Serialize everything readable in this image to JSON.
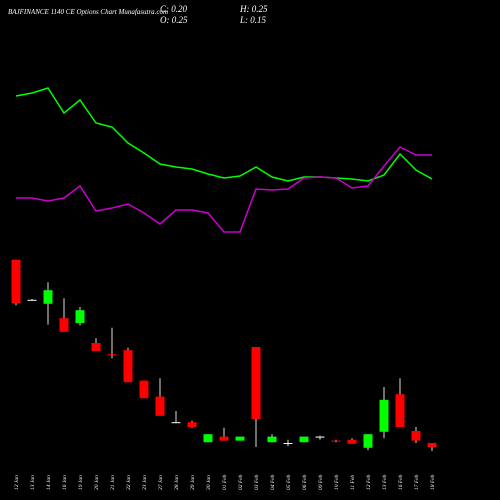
{
  "chart_data": {
    "type": "candlestick",
    "title": "BAJFINANCE 1140 CE Options Chart Munafasutra.com",
    "info": [
      "C: 0.20",
      "H: 0.25",
      "O: 0.25",
      "L: 0.15"
    ],
    "categories": [
      "12 Jan",
      "13 Jan",
      "14 Jan",
      "16 Jan",
      "19 Jan",
      "20 Jan",
      "21 Jan",
      "22 Jan",
      "23 Jan",
      "27 Jan",
      "28 Jan",
      "29 Jan",
      "30 Jan",
      "01 Feb",
      "02 Feb",
      "03 Feb",
      "04 Feb",
      "05 Feb",
      "06 Feb",
      "09 Feb",
      "10 Feb",
      "11 Feb",
      "12 Feb",
      "13 Feb",
      "16 Feb",
      "17 Feb",
      "18 Feb"
    ],
    "open": [
      2.54,
      2.04,
      1.99,
      1.81,
      1.75,
      1.5,
      1.36,
      1.41,
      1.03,
      0.83,
      0.51,
      0.51,
      0.26,
      0.33,
      0.28,
      1.45,
      0.26,
      0.25,
      0.26,
      0.33,
      0.28,
      0.29,
      0.19,
      0.39,
      0.86,
      0.4,
      0.25
    ],
    "high": [
      2.54,
      2.05,
      2.26,
      2.06,
      1.95,
      1.56,
      1.69,
      1.44,
      1.03,
      1.06,
      0.65,
      0.53,
      0.36,
      0.44,
      0.33,
      1.45,
      0.36,
      0.29,
      0.33,
      0.34,
      0.29,
      0.31,
      0.36,
      0.95,
      1.06,
      0.45,
      0.25
    ],
    "low": [
      1.97,
      2.03,
      1.73,
      1.64,
      1.72,
      1.4,
      1.31,
      1.01,
      0.81,
      0.59,
      0.5,
      0.44,
      0.26,
      0.28,
      0.28,
      0.2,
      0.26,
      0.21,
      0.26,
      0.29,
      0.26,
      0.24,
      0.16,
      0.31,
      0.45,
      0.25,
      0.15
    ],
    "close": [
      2.0,
      2.04,
      2.16,
      1.64,
      1.91,
      1.4,
      1.35,
      1.01,
      0.81,
      0.59,
      0.51,
      0.45,
      0.36,
      0.28,
      0.33,
      0.55,
      0.33,
      0.25,
      0.33,
      0.33,
      0.27,
      0.24,
      0.36,
      0.79,
      0.45,
      0.28,
      0.2
    ],
    "ylim": [
      0,
      2.6
    ],
    "up_color": "#00ff00",
    "down_color": "#ff0000",
    "lines": [
      {
        "color": "#00ff00",
        "values": [
          77,
          78.5,
          81,
          68.5,
          75,
          63.5,
          61.5,
          53.5,
          48.5,
          43,
          41.5,
          40.5,
          38,
          36,
          37,
          41.5,
          36.5,
          34.5,
          36.5,
          36.5,
          36,
          35.5,
          34.5,
          37.5,
          48,
          40,
          35.5
        ]
      },
      {
        "color": "#cc00cc",
        "values": [
          26,
          26,
          24.5,
          26,
          32,
          19.5,
          21,
          23,
          18.5,
          13,
          20,
          20,
          18.5,
          9,
          9,
          30.5,
          30,
          30.5,
          36,
          36.5,
          36,
          31,
          32,
          42,
          51.5,
          47.5,
          47.5
        ]
      }
    ],
    "lines_ylim": [
      0,
      100
    ]
  }
}
